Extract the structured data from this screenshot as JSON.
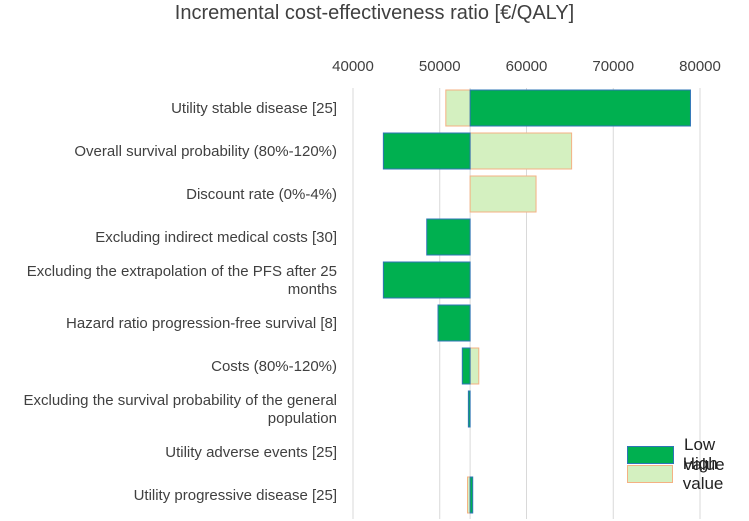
{
  "chart_data": {
    "type": "bar",
    "orientation": "horizontal",
    "variant": "tornado",
    "title": "Incremental cost-effectiveness ratio [€/QALY]",
    "base_value": 53500,
    "xlim": [
      40000,
      80000
    ],
    "xticks": [
      40000,
      50000,
      60000,
      70000,
      80000
    ],
    "xtick_labels": [
      "40000",
      "50000",
      "60000",
      "70000",
      "80000"
    ],
    "categories": [
      "Utility stable disease [25]",
      "Overall survival probability (80%-120%)",
      "Discount rate  (0%-4%)",
      "Excluding indirect medical costs [30]",
      "Excluding the extrapolation of the PFS after 25 months",
      "Hazard ratio progression-free survival [8]",
      "Costs (80%-120%)",
      "Excluding the survival probability of the general population",
      "Utility adverse events [25]",
      "Utility progressive disease [25]"
    ],
    "series": [
      {
        "name": "Low value",
        "color": "#00b050",
        "edge": "#2e75b6",
        "values": [
          78900,
          43500,
          53500,
          48500,
          43500,
          49800,
          52600,
          53300,
          53500,
          53800
        ]
      },
      {
        "name": "High value",
        "color": "#d4f0c0",
        "edge": "#f4b183",
        "values": [
          50700,
          65200,
          61100,
          53500,
          53500,
          53500,
          54500,
          53500,
          53500,
          53200
        ]
      }
    ]
  },
  "legend": {
    "low_label": "Low value",
    "high_label": "High value"
  }
}
